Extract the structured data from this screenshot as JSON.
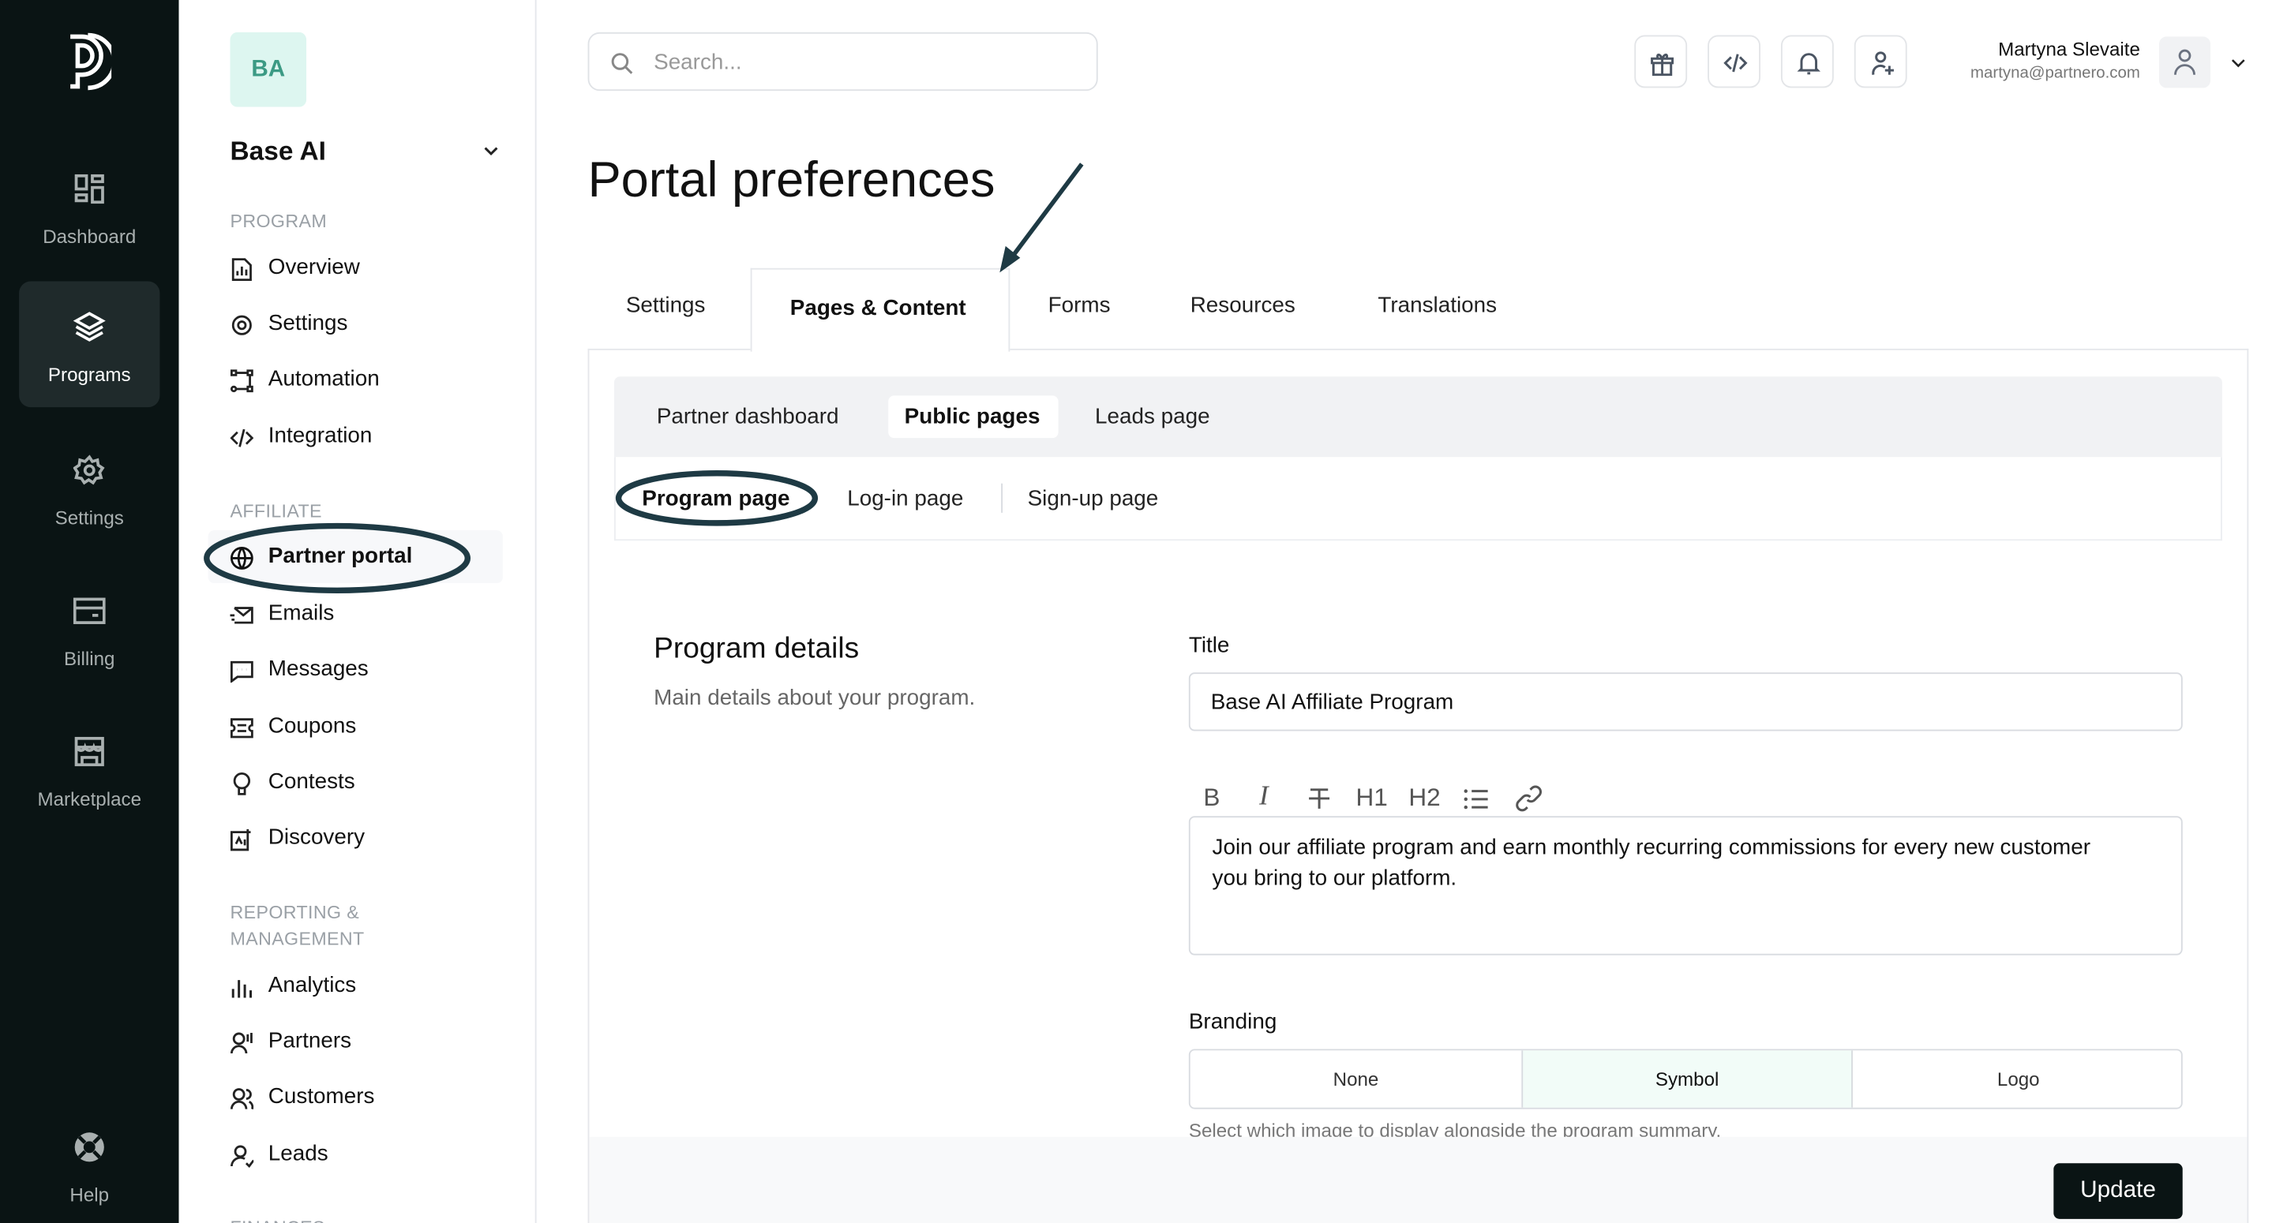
{
  "rail": {
    "items": [
      {
        "label": "Dashboard",
        "icon": "dashboard-icon"
      },
      {
        "label": "Programs",
        "icon": "layers-icon",
        "active": true
      },
      {
        "label": "Settings",
        "icon": "gear-icon"
      },
      {
        "label": "Billing",
        "icon": "card-icon"
      },
      {
        "label": "Marketplace",
        "icon": "store-icon"
      },
      {
        "label": "Help",
        "icon": "lifebuoy-icon"
      }
    ]
  },
  "sidebar": {
    "avatar_initials": "BA",
    "program_name": "Base AI",
    "sections": {
      "program": "PROGRAM",
      "affiliate": "AFFILIATE",
      "reporting_1": "REPORTING &",
      "reporting_2": "MANAGEMENT",
      "finances": "FINANCES"
    },
    "program_items": [
      "Overview",
      "Settings",
      "Automation",
      "Integration"
    ],
    "affiliate_items": [
      "Partner portal",
      "Emails",
      "Messages",
      "Coupons",
      "Contests",
      "Discovery"
    ],
    "reporting_items": [
      "Analytics",
      "Partners",
      "Customers",
      "Leads"
    ],
    "active_item": "Partner portal"
  },
  "header": {
    "search_placeholder": "Search...",
    "user_name": "Martyna Slevaite",
    "user_email": "martyna@partnero.com"
  },
  "page": {
    "title": "Portal preferences",
    "tabs": [
      "Settings",
      "Pages & Content",
      "Forms",
      "Resources",
      "Translations"
    ],
    "active_tab": "Pages & Content",
    "subtabs": [
      "Partner dashboard",
      "Public pages",
      "Leads page"
    ],
    "active_subtab": "Public pages",
    "pages": [
      "Program page",
      "Log-in page",
      "Sign-up page"
    ],
    "active_page": "Program page"
  },
  "form": {
    "section_title": "Program details",
    "section_desc": "Main details about your program.",
    "title_label": "Title",
    "title_value": "Base AI Affiliate Program",
    "toolbar": [
      "B",
      "I",
      "H1",
      "H2"
    ],
    "description": "Join our affiliate program and earn monthly recurring commissions for every new customer you bring to our platform.",
    "branding_label": "Branding",
    "branding_options": [
      "None",
      "Symbol",
      "Logo"
    ],
    "branding_selected": "Symbol",
    "branding_help": "Select which image to display alongside the program summary.",
    "update_label": "Update"
  },
  "colors": {
    "rail_bg": "#0a1414",
    "accent_bg": "#ddf6f0",
    "accent_text": "#3b9a84",
    "annotation": "#1e3a44"
  }
}
